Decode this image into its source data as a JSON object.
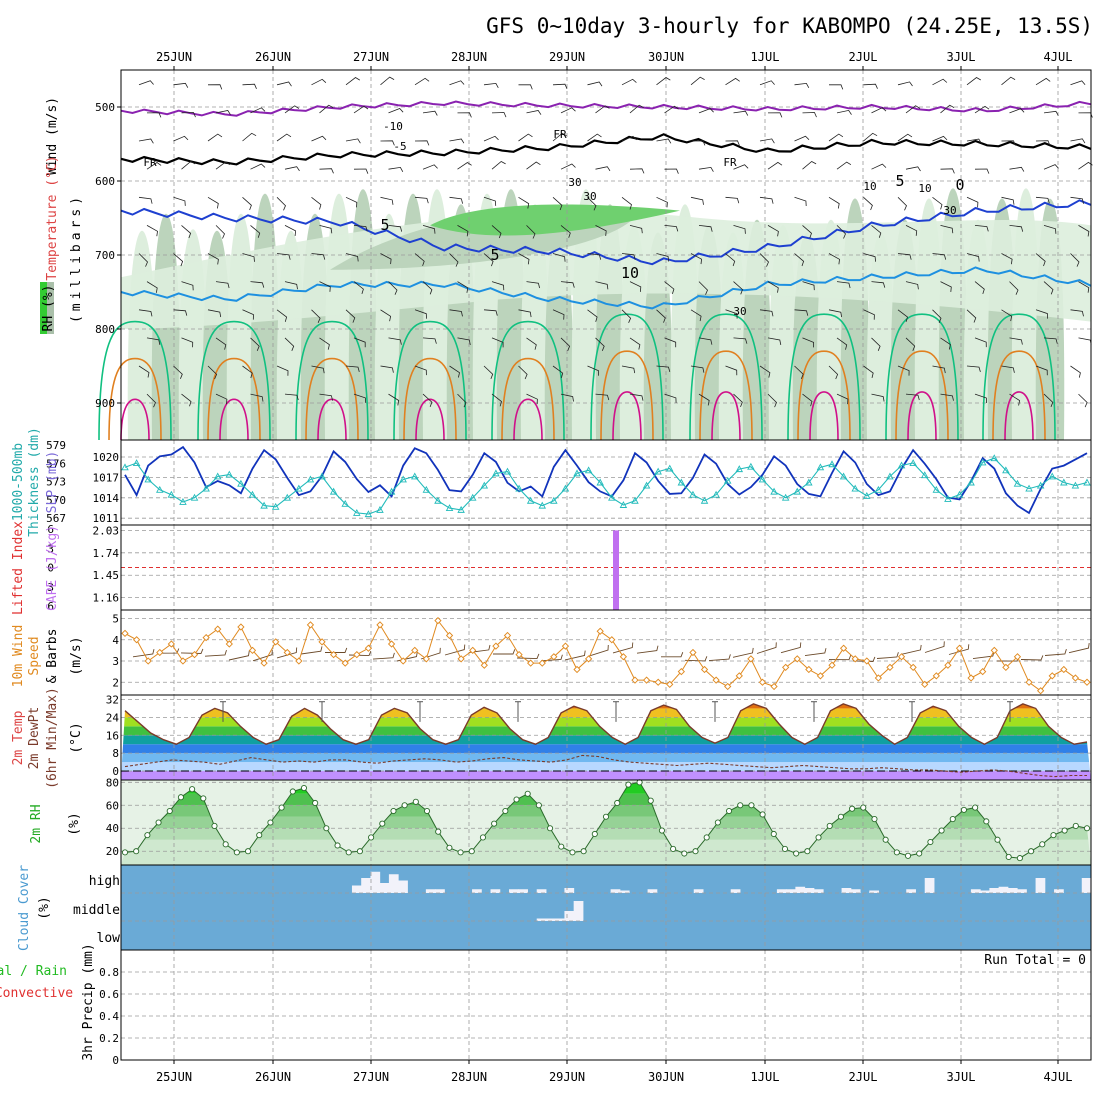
{
  "title": "GFS 0~10day 3-hourly for KABOMPO (24.25E, 13.5S)",
  "dates": [
    "25JUN",
    "26JUN",
    "27JUN",
    "28JUN",
    "29JUN",
    "30JUN",
    "1JUL",
    "2JUL",
    "3JUL",
    "4JUL"
  ],
  "colors": {
    "rh_fill": [
      "#ddeedd",
      "#bcd4bc",
      "#9db29d",
      "#6fd06f"
    ],
    "wind_500": "#8a22b0",
    "iso_fr": "#000000",
    "iso_blue": "#1e40d0",
    "iso_cyan": "#1e90e0",
    "iso_green": "#10c080",
    "iso_orange": "#e08020",
    "iso_red": "#d0108a",
    "slp": "#1133bb",
    "thickness": "#22bbbb",
    "cape": "#c070f0",
    "lifted": "#e03030",
    "wind10": "#e08a20",
    "barb": "#6b4a2a",
    "temp_line": "#7a3a2a",
    "dewpt_line": "#7a3a2a",
    "rh2m": "#22aa22",
    "cloud_bg": "#6aaad6",
    "cloud_block": "#f2f2fa"
  },
  "labels": {
    "panel1": [
      "Wind (m/s)",
      "Temperature (°C)",
      "RH (%)",
      "(millibars)"
    ],
    "panel2": [
      "1000-500mb",
      "Thickness (dm)",
      "SLP (mb)"
    ],
    "panel3": [
      "Lifted Index",
      "CAPE (J/kg)"
    ],
    "panel4": [
      "10m Wind",
      "Speed",
      "(m/s)",
      "& Barbs"
    ],
    "panel5": [
      "2m Temp",
      "2m DewPt",
      "(6hr Min/Max)",
      "(°C)"
    ],
    "panel6": [
      "2m RH",
      "(%)"
    ],
    "panel7": [
      "Cloud Cover",
      "(%)"
    ],
    "panel8": [
      "Total / Rain",
      "Convective",
      "3hr Precip (mm)"
    ],
    "run_total": "Run Total = 0"
  },
  "contour_labels": [
    "FR",
    "FR",
    "FR",
    "-5",
    "-10",
    "5",
    "5",
    "10",
    "10",
    "30",
    "30",
    "30",
    "10",
    "0",
    "5",
    "30"
  ],
  "chart_data": [
    {
      "type": "heatmap",
      "name": "Upper-air cross-section",
      "ylabel": "millibars",
      "y_ticks": [
        500,
        600,
        700,
        800,
        900
      ],
      "ylim": [
        950,
        450
      ],
      "x": [
        "25JUN",
        "26JUN",
        "27JUN",
        "28JUN",
        "29JUN",
        "30JUN",
        "1JUL",
        "2JUL",
        "3JUL",
        "4JUL"
      ],
      "contour_levels_temperature": [
        -10,
        -5,
        0,
        5,
        10
      ],
      "freezing_level_mb": [
        570,
        575,
        565,
        562,
        555,
        540,
        560,
        548,
        550,
        555
      ],
      "minus5_level_mb": [
        505,
        510,
        500,
        495,
        498,
        500,
        503,
        500,
        505,
        495
      ],
      "plus5_level_mb": [
        640,
        650,
        655,
        690,
        695,
        710,
        690,
        660,
        640,
        630
      ],
      "plus10_level_mb": [
        750,
        760,
        740,
        740,
        760,
        770,
        740,
        730,
        720,
        740
      ]
    },
    {
      "type": "line",
      "name": "SLP and Thickness",
      "y_ticks_thickness": [
        567,
        570,
        573,
        576,
        579
      ],
      "y_ticks_slp": [
        1011,
        1014,
        1017,
        1020
      ],
      "ylim_slp": [
        1010,
        1022.5
      ],
      "ylim_thickness": [
        567,
        579
      ],
      "series": [
        {
          "name": "SLP (mb)",
          "values": [
            1017.5,
            1014.2,
            1019.0,
            1020.5,
            1020.8,
            1022.0,
            1019.5,
            1015.5,
            1016.5,
            1015.8,
            1014.5,
            1018.5,
            1021.5,
            1020.0,
            1017.0,
            1014.2,
            1014.8,
            1017.3,
            1021.3,
            1019.6,
            1016.8,
            1014.7,
            1015.8,
            1014.0,
            1019.0,
            1021.8,
            1021.0,
            1018.3,
            1015.0,
            1014.8,
            1017.5,
            1021.0,
            1019.6,
            1016.2,
            1014.8,
            1015.6,
            1014.0,
            1018.8,
            1021.5,
            1019.0,
            1016.3,
            1014.8,
            1014.0,
            1016.6,
            1021.0,
            1019.5,
            1016.5,
            1014.4,
            1014.5,
            1017.0,
            1020.8,
            1019.3,
            1016.0,
            1014.3,
            1015.5,
            1017.5,
            1020.5,
            1019.0,
            1016.0,
            1014.4,
            1014.0,
            1017.8,
            1021.3,
            1019.5,
            1016.0,
            1014.2,
            1014.8,
            1018.5,
            1021.5,
            1019.3,
            1016.8,
            1013.8,
            1013.5,
            1016.5,
            1020.2,
            1018.5,
            1014.5,
            1012.5,
            1011.3,
            1015.2,
            1018.5,
            1019.0,
            1020.0,
            1021.0
          ]
        },
        {
          "name": "1000-500mb Thickness (dm)",
          "values": [
            575.5,
            576.2,
            573.5,
            571.8,
            571.0,
            569.8,
            570.5,
            572.0,
            574.0,
            574.3,
            572.8,
            571.0,
            569.2,
            569.0,
            570.5,
            572.0,
            573.5,
            574.0,
            571.5,
            569.5,
            568.0,
            567.8,
            568.5,
            571.5,
            573.5,
            574.0,
            571.8,
            570.0,
            568.8,
            568.5,
            570.5,
            572.5,
            574.5,
            574.8,
            572.0,
            570.0,
            569.2,
            570.0,
            572.0,
            574.5,
            575.0,
            573.0,
            570.5,
            569.3,
            570.0,
            572.5,
            574.8,
            575.3,
            573.0,
            571.0,
            570.0,
            571.0,
            573.3,
            575.2,
            575.6,
            573.5,
            571.5,
            570.5,
            571.5,
            573.0,
            575.5,
            576.0,
            574.0,
            572.0,
            570.8,
            571.8,
            574.0,
            575.8,
            576.2,
            574.2,
            571.8,
            570.3,
            571.0,
            573.0,
            576.3,
            577.0,
            575.0,
            572.8,
            572.0,
            572.5,
            574.0,
            573.0,
            572.5,
            573.0
          ]
        }
      ]
    },
    {
      "type": "bar",
      "name": "CAPE and Lifted Index",
      "y_ticks_li": [
        -6,
        -3,
        0,
        3,
        6
      ],
      "y_ticks_cape": [
        1.16,
        1.45,
        1.74,
        2.03
      ],
      "ylim_cape": [
        1.0,
        2.1
      ],
      "cape_bars": [
        {
          "x": "29JUN 12Z",
          "value": 2.03
        }
      ],
      "lifted_index_line": 0
    },
    {
      "type": "line",
      "name": "10m Wind Speed",
      "ylabel": "(m/s)",
      "y_ticks": [
        2,
        3,
        4,
        5
      ],
      "ylim": [
        1.4,
        5.4
      ],
      "series": [
        {
          "name": "10m Wind Speed",
          "values": [
            4.3,
            4.0,
            3.0,
            3.4,
            3.8,
            3.0,
            3.3,
            4.1,
            4.5,
            3.8,
            4.6,
            3.5,
            2.9,
            3.9,
            3.4,
            3.0,
            4.7,
            3.9,
            3.3,
            2.9,
            3.3,
            3.6,
            4.7,
            3.8,
            3.0,
            3.5,
            3.1,
            4.9,
            4.2,
            3.1,
            3.5,
            2.8,
            3.7,
            4.2,
            3.3,
            2.9,
            2.9,
            3.2,
            3.7,
            2.6,
            3.1,
            4.4,
            4.0,
            3.2,
            2.1,
            2.1,
            2.0,
            1.9,
            2.5,
            3.4,
            2.6,
            2.1,
            1.8,
            2.3,
            3.1,
            2.0,
            1.8,
            2.7,
            3.1,
            2.6,
            2.3,
            2.8,
            3.6,
            3.1,
            3.0,
            2.2,
            2.7,
            3.2,
            2.7,
            1.9,
            2.3,
            2.8,
            3.6,
            2.2,
            2.5,
            3.5,
            2.7,
            3.2,
            2.0,
            1.6,
            2.3,
            2.6,
            2.2,
            2.0
          ]
        }
      ]
    },
    {
      "type": "area",
      "name": "2m Temperature and Dew Point",
      "ylabel": "(°C)",
      "y_ticks": [
        0,
        8,
        16,
        24,
        32
      ],
      "ylim": [
        -4,
        34
      ],
      "series": [
        {
          "name": "2m Temp",
          "values": [
            27.0,
            22.0,
            17.0,
            14.0,
            12.0,
            15.0,
            25.0,
            28.0,
            26.0,
            20.0,
            15.0,
            12.0,
            14.0,
            24.5,
            28.0,
            25.0,
            19.0,
            14.0,
            12.0,
            14.0,
            25.0,
            28.0,
            26.0,
            19.0,
            14.0,
            12.0,
            14.0,
            25.0,
            28.5,
            26.0,
            19.0,
            14.0,
            12.0,
            15.0,
            26.0,
            29.0,
            27.0,
            20.0,
            15.0,
            12.0,
            15.0,
            27.0,
            29.5,
            27.5,
            20.0,
            15.0,
            12.5,
            15.0,
            27.0,
            30.0,
            28.0,
            21.0,
            15.0,
            12.0,
            15.0,
            27.0,
            30.0,
            28.0,
            21.0,
            16.0,
            12.0,
            15.0,
            26.0,
            29.0,
            27.0,
            20.0,
            15.0,
            12.0,
            15.0,
            27.0,
            30.0,
            28.0,
            20.0,
            15.0,
            12.0,
            13.0
          ]
        },
        {
          "name": "2m DewPt",
          "values": [
            2.0,
            3.0,
            4.0,
            5.0,
            4.5,
            4.0,
            3.0,
            4.5,
            6.0,
            5.0,
            4.0,
            4.5,
            4.0,
            5.0,
            5.0,
            4.0,
            3.5,
            4.5,
            5.0,
            5.5,
            5.0,
            4.0,
            4.5,
            5.5,
            6.0,
            5.0,
            4.5,
            4.0,
            5.0,
            7.0,
            6.5,
            5.0,
            4.0,
            3.5,
            3.0,
            2.5,
            3.0,
            3.5,
            3.0,
            2.5,
            2.0,
            1.5,
            2.0,
            2.5,
            2.0,
            1.5,
            1.0,
            1.0,
            1.5,
            1.0,
            0.5,
            0.5,
            0.0,
            -0.5,
            0.0,
            0.5,
            0.0,
            -1.0,
            -2.0,
            -2.5,
            -2.0,
            -2.0
          ]
        }
      ]
    },
    {
      "type": "area",
      "name": "2m Relative Humidity",
      "ylabel": "(%)",
      "y_ticks": [
        20,
        40,
        60,
        80
      ],
      "ylim": [
        8,
        82
      ],
      "series": [
        {
          "name": "2m RH",
          "values": [
            19,
            20,
            34,
            45,
            55,
            67,
            74,
            66,
            42,
            26,
            19,
            20,
            34,
            45,
            58,
            72,
            75,
            62,
            40,
            25,
            19,
            20,
            32,
            44,
            55,
            60,
            63,
            55,
            37,
            23,
            19,
            20,
            32,
            44,
            55,
            65,
            70,
            60,
            40,
            24,
            19,
            20,
            35,
            50,
            62,
            78,
            80,
            64,
            38,
            22,
            18,
            20,
            32,
            45,
            55,
            60,
            60,
            52,
            35,
            22,
            18,
            20,
            32,
            42,
            50,
            57,
            58,
            48,
            30,
            19,
            16,
            18,
            28,
            38,
            48,
            56,
            58,
            46,
            30,
            15,
            14,
            20,
            26,
            34,
            38,
            42,
            40
          ]
        }
      ]
    },
    {
      "type": "bar",
      "name": "Cloud Cover",
      "y_ticks": [
        "high",
        "middle",
        "low"
      ],
      "series": [
        {
          "name": "high",
          "values": [
            0,
            0,
            0,
            0,
            0,
            0,
            0,
            0,
            0,
            0,
            0,
            0,
            0,
            0,
            0,
            0,
            0,
            0,
            0,
            0,
            0,
            0,
            0,
            0,
            0,
            30,
            60,
            85,
            40,
            75,
            50,
            0,
            0,
            15,
            15,
            0,
            0,
            0,
            15,
            0,
            15,
            0,
            15,
            15,
            0,
            15,
            0,
            0,
            20,
            0,
            0,
            0,
            0,
            15,
            10,
            0,
            0,
            15,
            0,
            0,
            0,
            0,
            15,
            0,
            0,
            0,
            15,
            0,
            0,
            0,
            0,
            15,
            15,
            25,
            20,
            15,
            0,
            0,
            20,
            15,
            0,
            10,
            0,
            0,
            0,
            15,
            0,
            60,
            0,
            0,
            0,
            0,
            15,
            10,
            20,
            25,
            20,
            15,
            0,
            60,
            0,
            15,
            0,
            0,
            60
          ]
        },
        {
          "name": "middle",
          "values": [
            0,
            0,
            0,
            0,
            0,
            0,
            0,
            0,
            0,
            0,
            0,
            0,
            0,
            0,
            0,
            0,
            0,
            0,
            0,
            0,
            0,
            0,
            0,
            0,
            0,
            0,
            0,
            0,
            0,
            0,
            0,
            0,
            0,
            0,
            0,
            0,
            0,
            0,
            0,
            0,
            0,
            0,
            0,
            0,
            0,
            10,
            10,
            10,
            40,
            80,
            0,
            0,
            0,
            0,
            0,
            0,
            0,
            0,
            0,
            0,
            0,
            0,
            0,
            0,
            0,
            0,
            0,
            0,
            0,
            0,
            0,
            0,
            0,
            0,
            0,
            0,
            0,
            0,
            0,
            0,
            0,
            0,
            0,
            0,
            0,
            0,
            0,
            0,
            0,
            0,
            0,
            0,
            0,
            0,
            0,
            0,
            0,
            0,
            0,
            0,
            0,
            0,
            0,
            0,
            0
          ]
        },
        {
          "name": "low",
          "values": [
            0,
            0,
            0,
            0,
            0,
            0,
            0,
            0,
            0,
            0,
            0,
            0,
            0,
            0,
            0,
            0,
            0,
            0,
            0,
            0,
            0,
            0,
            0,
            0,
            0,
            0,
            0,
            0,
            0,
            0,
            0,
            0,
            0,
            0,
            0,
            0,
            0,
            0,
            0,
            0,
            0,
            0,
            0,
            0,
            0,
            0,
            0,
            0,
            0,
            0,
            0,
            0,
            0,
            0,
            0,
            0,
            0,
            0,
            0,
            0,
            0,
            0,
            0,
            0,
            0,
            0,
            0,
            0,
            0,
            0,
            0,
            0,
            0,
            0,
            0,
            0,
            0,
            0,
            0,
            0,
            0,
            0,
            0,
            0,
            0,
            0,
            0,
            0,
            0,
            0,
            0,
            0,
            0,
            0,
            0,
            0,
            0,
            0,
            0,
            0,
            0,
            0,
            0,
            0,
            0
          ]
        }
      ]
    },
    {
      "type": "bar",
      "name": "3hr Precip",
      "ylabel": "3hr Precip (mm)",
      "y_ticks": [
        0,
        0.2,
        0.4,
        0.6,
        0.8
      ],
      "ylim": [
        0,
        1.0
      ],
      "series": [
        {
          "name": "Total / Rain",
          "values": []
        },
        {
          "name": "Convective",
          "values": []
        }
      ]
    }
  ]
}
